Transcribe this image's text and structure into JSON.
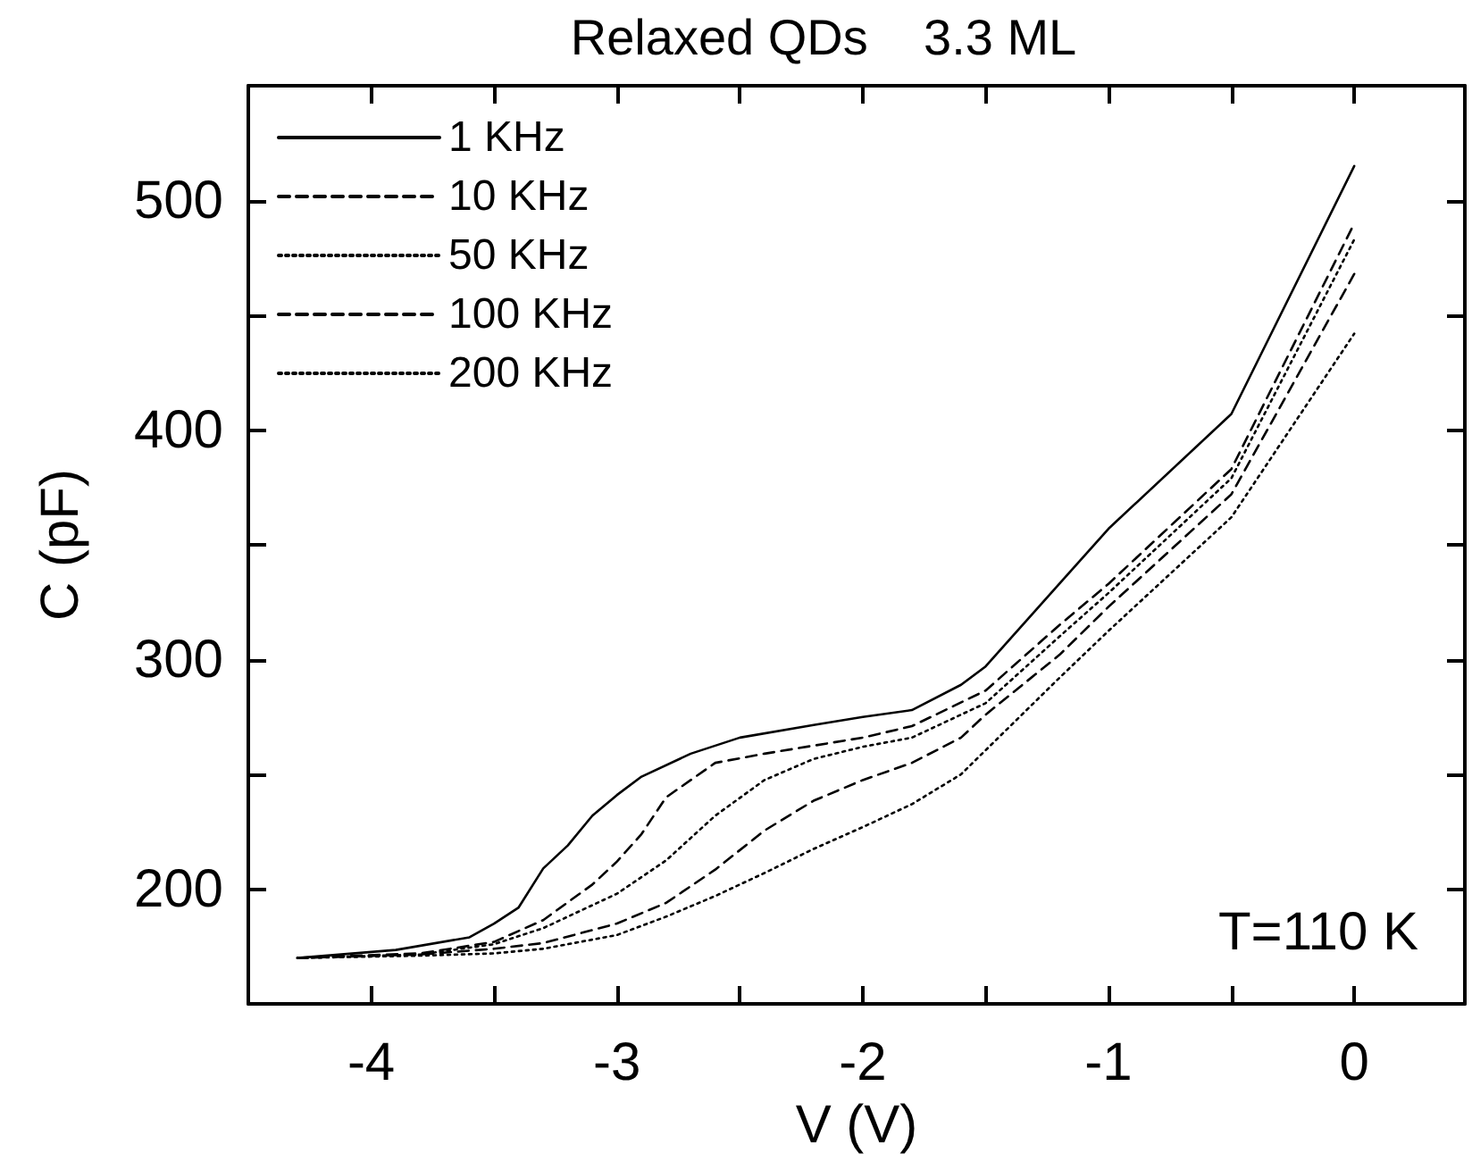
{
  "chart_data": {
    "type": "line",
    "title": "Relaxed QDs    3.3 ML",
    "xlabel": "V (V)",
    "ylabel": "C (pF)",
    "annotations": [
      "T=110 K"
    ],
    "xlim": [
      -4.5,
      0.45
    ],
    "xticks": [
      -4,
      {
        "value": -3.5,
        "label": null
      },
      -3,
      {
        "value": -2.5,
        "label": null
      },
      -2,
      {
        "value": -1.5,
        "label": null
      },
      -1,
      {
        "value": -0.5,
        "label": null
      },
      0
    ],
    "ylim": [
      150,
      550
    ],
    "yticks": [
      200,
      {
        "value": 250,
        "label": null
      },
      300,
      {
        "value": 350,
        "label": null
      },
      400,
      {
        "value": 450,
        "label": null
      },
      500
    ],
    "grid": false,
    "legend": "top left",
    "marker": "none",
    "series": [
      {
        "name": "1 KHz",
        "color": "#000000",
        "line_style": "solid",
        "x": [
          -4.3,
          -3.9,
          -3.6,
          -3.5,
          -3.4,
          -3.3,
          -3.2,
          -3.1,
          -3.0,
          -2.9,
          -2.7,
          -2.5,
          -2.2,
          -2.0,
          -1.8,
          -1.6,
          -1.5,
          -1.2,
          -1.0,
          -0.5,
          0
        ],
        "values": [
          170,
          173.5,
          179,
          185,
          192,
          209,
          219,
          232,
          241,
          249,
          259,
          266,
          271.5,
          275,
          278,
          289,
          297,
          333,
          357,
          407,
          515
        ]
      },
      {
        "name": "10 KHz",
        "color": "#000000",
        "line_style": "dashed",
        "x": [
          -4.3,
          -3.8,
          -3.5,
          -3.3,
          -3.1,
          -3.0,
          -2.9,
          -2.8,
          -2.7,
          -2.6,
          -2.4,
          -2.0,
          -1.8,
          -1.5,
          -1.2,
          -1.0,
          -0.5,
          0
        ],
        "values": [
          170,
          172,
          177,
          186.5,
          202,
          212,
          224,
          240,
          247.5,
          255,
          259,
          266,
          271,
          286.5,
          315,
          333,
          383,
          490
        ]
      },
      {
        "name": "50 KHz",
        "color": "#000000",
        "line_style": "dotted",
        "x": [
          -4.3,
          -3.8,
          -3.5,
          -3.3,
          -3.0,
          -2.8,
          -2.6,
          -2.4,
          -2.2,
          -2.0,
          -1.8,
          -1.5,
          -1.2,
          -1.0,
          -0.5,
          0
        ],
        "values": [
          170,
          171.5,
          176,
          183,
          198,
          212.5,
          232,
          247.5,
          256.7,
          262,
          266,
          281,
          310,
          329,
          379,
          483
        ]
      },
      {
        "name": "100 KHz",
        "color": "#000000",
        "line_style": "dashed",
        "x": [
          -4.3,
          -3.8,
          -3.5,
          -3.3,
          -3.0,
          -2.8,
          -2.6,
          -2.4,
          -2.2,
          -2.0,
          -1.8,
          -1.6,
          -1.5,
          -1.2,
          -1.0,
          -0.5,
          0
        ],
        "values": [
          170,
          171.5,
          174,
          176.5,
          185,
          194,
          208.5,
          225.5,
          238.5,
          247.5,
          255,
          266,
          276,
          302,
          323,
          372,
          468
        ]
      },
      {
        "name": "200 KHz",
        "color": "#000000",
        "line_style": "dotted",
        "x": [
          -4.3,
          -3.8,
          -3.5,
          -3.3,
          -3.0,
          -2.8,
          -2.6,
          -2.4,
          -2.2,
          -2.0,
          -1.8,
          -1.6,
          -1.5,
          -1.2,
          -1.0,
          -0.5,
          0
        ],
        "values": [
          170,
          171,
          172,
          174,
          180,
          188,
          197,
          207,
          217.5,
          227,
          237,
          250,
          260.5,
          292,
          312.5,
          362,
          442
        ]
      }
    ]
  }
}
